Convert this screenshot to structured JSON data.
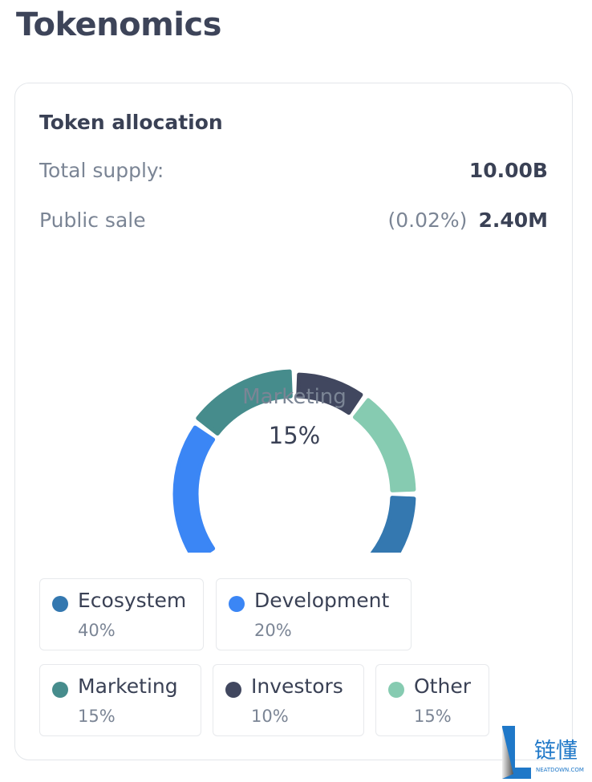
{
  "page_title": "Tokenomics",
  "card": {
    "title": "Token allocation",
    "total_supply_label": "Total supply:",
    "total_supply_value": "10.00B",
    "public_sale_label": "Public sale",
    "public_sale_percent": "(0.02%)",
    "public_sale_value": "2.40M"
  },
  "chart_data": {
    "type": "pie",
    "variant": "donut",
    "active_label": "Marketing",
    "active_value": "15%",
    "slices": [
      {
        "name": "Ecosystem",
        "value": 40,
        "label": "40%",
        "color": "#3478b0"
      },
      {
        "name": "Development",
        "value": 20,
        "label": "20%",
        "color": "#3b86f5"
      },
      {
        "name": "Marketing",
        "value": 15,
        "label": "15%",
        "color": "#468c8c"
      },
      {
        "name": "Investors",
        "value": 10,
        "label": "10%",
        "color": "#41475f"
      },
      {
        "name": "Other",
        "value": 15,
        "label": "15%",
        "color": "#86cbb1"
      }
    ]
  },
  "watermark": {
    "text": "链懂",
    "sub": "NEATDOWN.COM"
  }
}
